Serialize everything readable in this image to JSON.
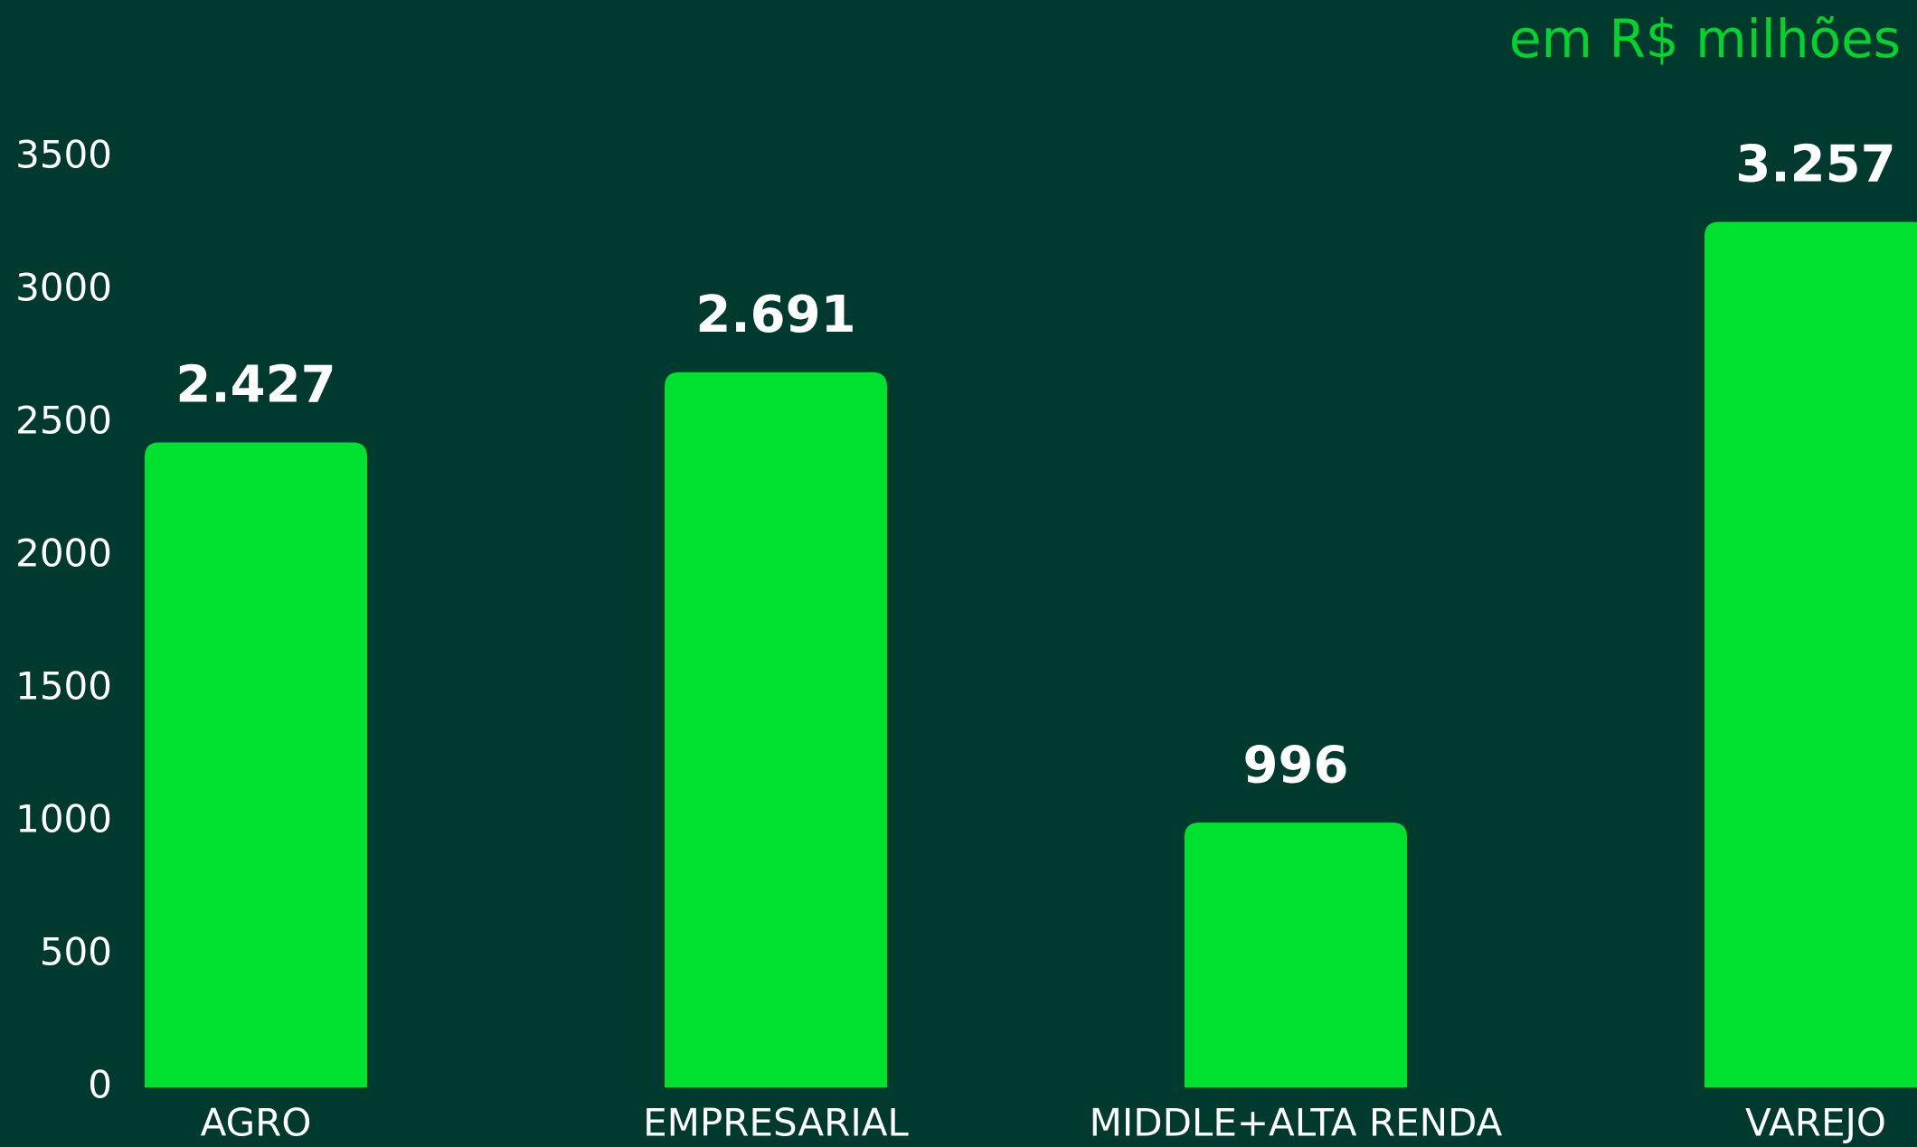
{
  "chart_data": {
    "type": "bar",
    "subtitle": "em R$ milhões",
    "categories": [
      "AGRO",
      "EMPRESARIAL",
      "MIDDLE+ALTA RENDA",
      "VAREJO"
    ],
    "values": [
      2427,
      2691,
      996,
      3257
    ],
    "value_labels": [
      "2.427",
      "2.691",
      "996",
      "3.257"
    ],
    "color": "#00e12f",
    "ylim": [
      0,
      3500
    ],
    "yticks": [
      0,
      500,
      1000,
      1500,
      2000,
      2500,
      3000,
      3500
    ],
    "grid": false
  }
}
